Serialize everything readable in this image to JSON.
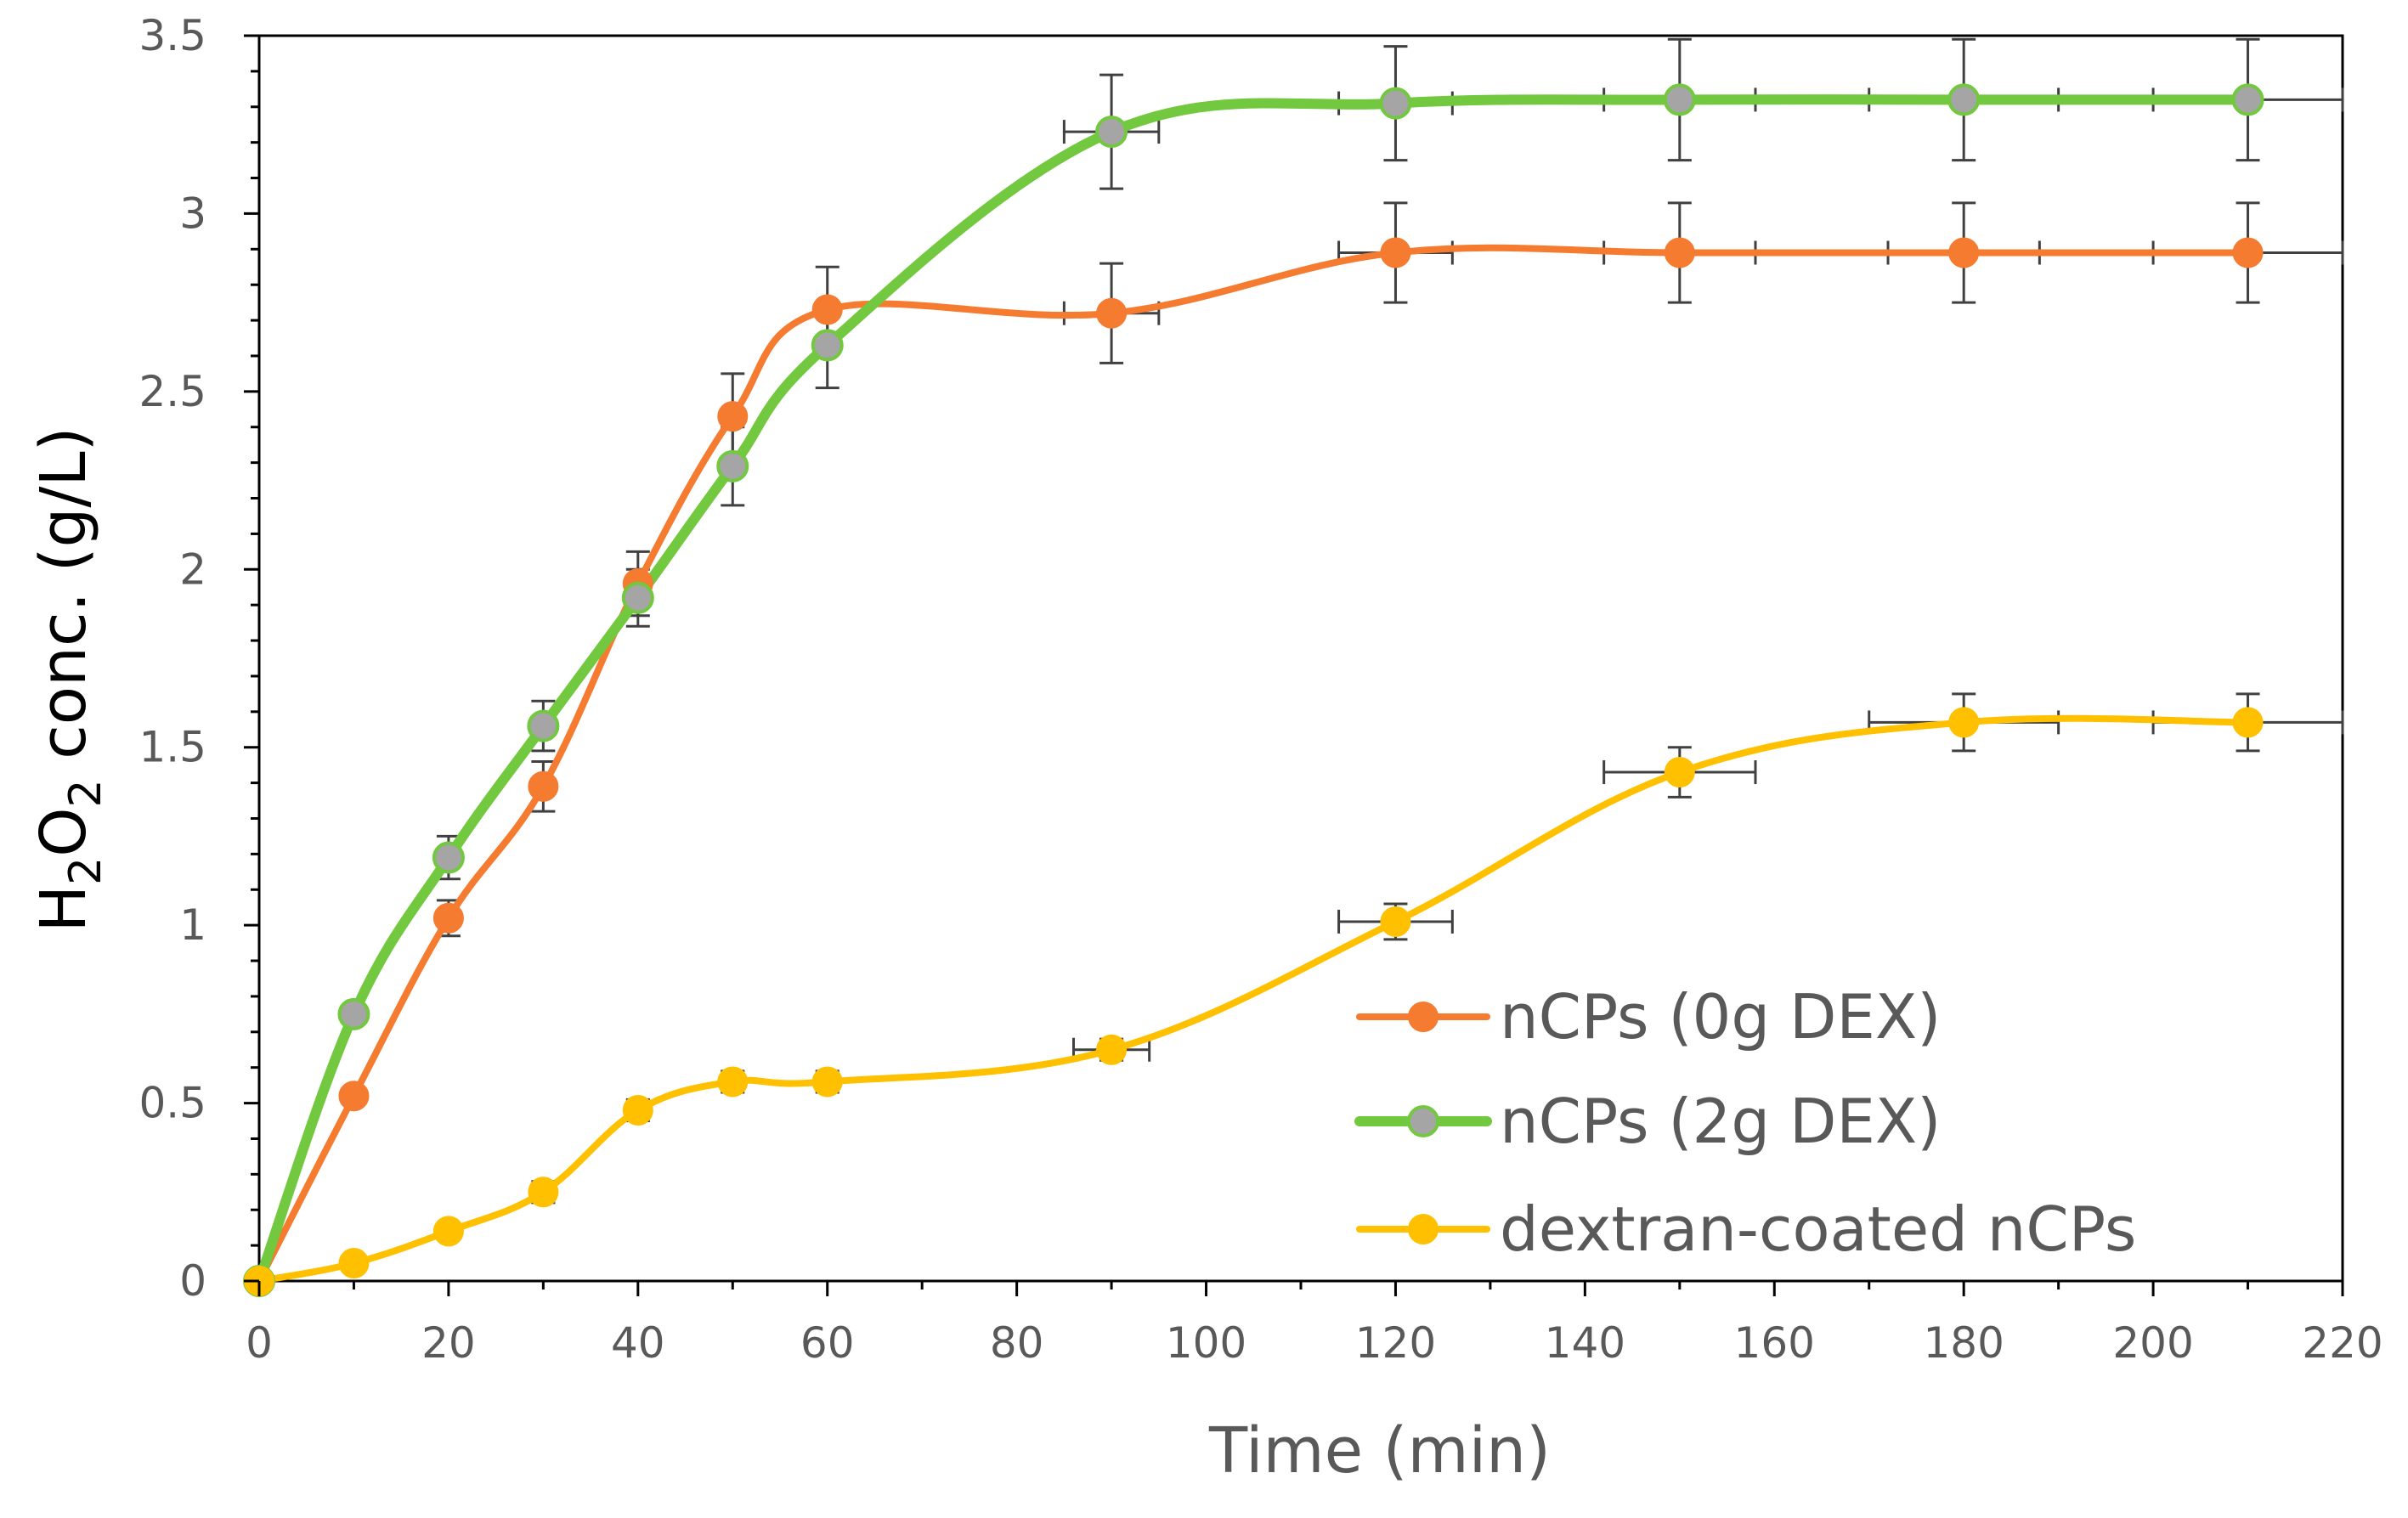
{
  "chart_data": {
    "type": "line",
    "xlabel": "Time (min)",
    "ylabel": {
      "parts": [
        {
          "text": "H",
          "sub": false
        },
        {
          "text": "2",
          "sub": true
        },
        {
          "text": "O",
          "sub": false
        },
        {
          "text": "2",
          "sub": true
        },
        {
          "text": " conc. (g/L)",
          "sub": false
        }
      ]
    },
    "xlim": [
      0,
      220
    ],
    "ylim": [
      0,
      3.5
    ],
    "x_ticks": [
      0,
      20,
      40,
      60,
      80,
      100,
      120,
      140,
      160,
      180,
      200,
      220
    ],
    "x_tick_labels": [
      "0",
      "20",
      "40",
      "60",
      "80",
      "100",
      "120",
      "140",
      "160",
      "180",
      "200",
      "220"
    ],
    "y_ticks": [
      0,
      0.5,
      1,
      1.5,
      2,
      2.5,
      3,
      3.5
    ],
    "y_tick_labels": [
      "0",
      "0.5",
      "1",
      "1.5",
      "2",
      "2.5",
      "3",
      "3.5"
    ],
    "grid": false,
    "smooth": true,
    "legend_position": "bottom-right",
    "series": [
      {
        "name": "nCPs (0g DEX)",
        "color": "#f47b30",
        "marker_color": "#f47b30",
        "x": [
          0,
          10,
          20,
          30,
          40,
          50,
          60,
          90,
          120,
          150,
          180,
          210
        ],
        "y": [
          0,
          0.52,
          1.02,
          1.39,
          1.96,
          2.43,
          2.73,
          2.72,
          2.89,
          2.89,
          2.89,
          2.89
        ],
        "y_err": [
          0,
          0,
          0.05,
          0.07,
          0.09,
          0.12,
          0.12,
          0.14,
          0.14,
          0.14,
          0.14,
          0.14
        ],
        "x_err": [
          0,
          0,
          0,
          0,
          0,
          0,
          0,
          5,
          6,
          8,
          8,
          10
        ]
      },
      {
        "name": "nCPs (2g DEX)",
        "color": "#72c83f",
        "marker_color": "#a5a5a5",
        "x": [
          0,
          10,
          20,
          30,
          40,
          50,
          60,
          90,
          120,
          150,
          180,
          210
        ],
        "y": [
          0,
          0.75,
          1.19,
          1.56,
          1.92,
          2.29,
          2.63,
          3.23,
          3.31,
          3.32,
          3.32,
          3.32
        ],
        "y_err": [
          0,
          0,
          0.06,
          0.07,
          0.08,
          0.11,
          0.12,
          0.16,
          0.16,
          0.17,
          0.17,
          0.17
        ],
        "x_err": [
          0,
          0,
          0,
          0,
          0,
          0,
          0,
          5,
          6,
          8,
          10,
          10
        ]
      },
      {
        "name": "dextran-coated nCPs",
        "color": "#ffc000",
        "marker_color": "#ffc000",
        "x": [
          0,
          10,
          20,
          30,
          40,
          50,
          60,
          90,
          120,
          150,
          180,
          210
        ],
        "y": [
          0,
          0.05,
          0.14,
          0.25,
          0.48,
          0.56,
          0.56,
          0.65,
          1.01,
          1.43,
          1.57,
          1.57
        ],
        "y_err": [
          0,
          0,
          0,
          0.03,
          0.03,
          0.03,
          0.03,
          0.03,
          0.05,
          0.07,
          0.08,
          0.08
        ],
        "x_err": [
          0,
          0,
          0,
          0,
          0,
          0,
          0,
          4,
          6,
          8,
          10,
          10
        ]
      }
    ]
  }
}
